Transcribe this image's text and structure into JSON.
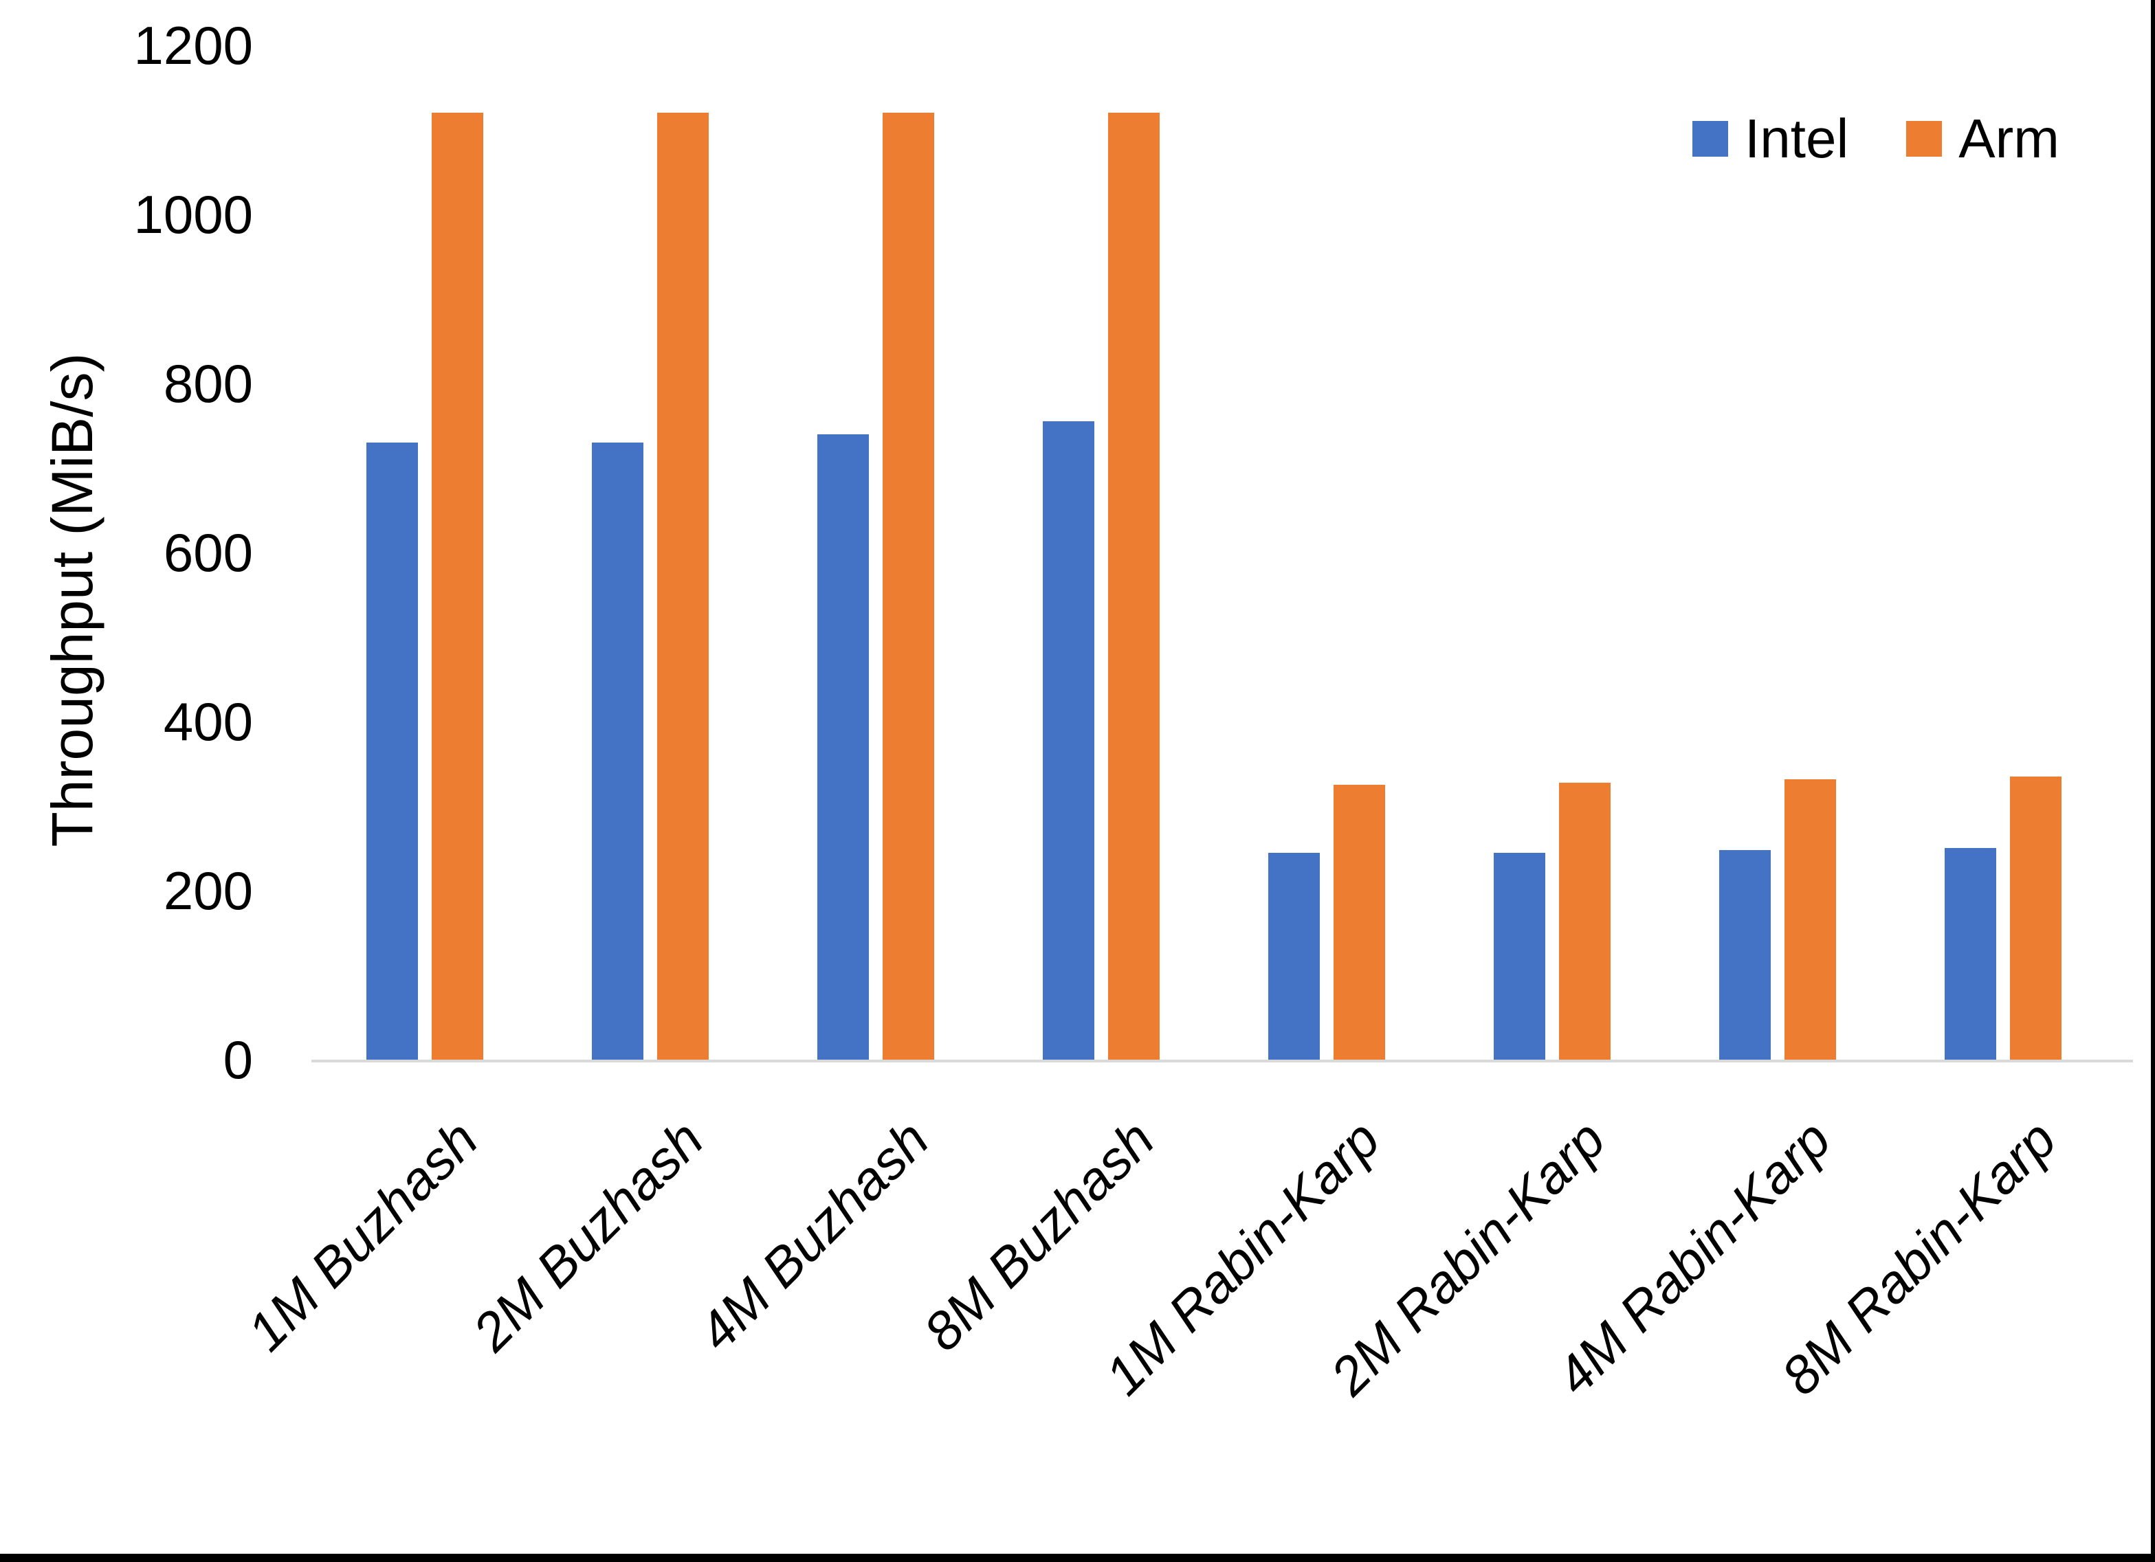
{
  "chart_data": {
    "type": "bar",
    "title": "",
    "xlabel": "",
    "ylabel": "Throughput (MiB/s)",
    "categories": [
      "1M Buzhash",
      "2M Buzhash",
      "4M Buzhash",
      "8M Buzhash",
      "1M Rabin-Karp",
      "2M Rabin-Karp",
      "4M Rabin-Karp",
      "8M Rabin-Karp"
    ],
    "series": [
      {
        "name": "Intel",
        "color": "#4472C4",
        "values": [
          730,
          730,
          740,
          755,
          245,
          245,
          248,
          250
        ]
      },
      {
        "name": "Arm",
        "color": "#ED7D31",
        "values": [
          1120,
          1120,
          1120,
          1120,
          325,
          328,
          332,
          335
        ]
      }
    ],
    "ylim": [
      0,
      1200
    ],
    "yticks": [
      0,
      200,
      400,
      600,
      800,
      1000,
      1200
    ],
    "grid": false,
    "legend_position": "top-right",
    "bar_gap_in_group": 20,
    "axis_line_color": "#D9D9D9",
    "text_color": "#000000"
  },
  "figure": {
    "background": "#FFFFFF",
    "bottom_border_color": "#000000",
    "right_border_color": "#000000"
  }
}
